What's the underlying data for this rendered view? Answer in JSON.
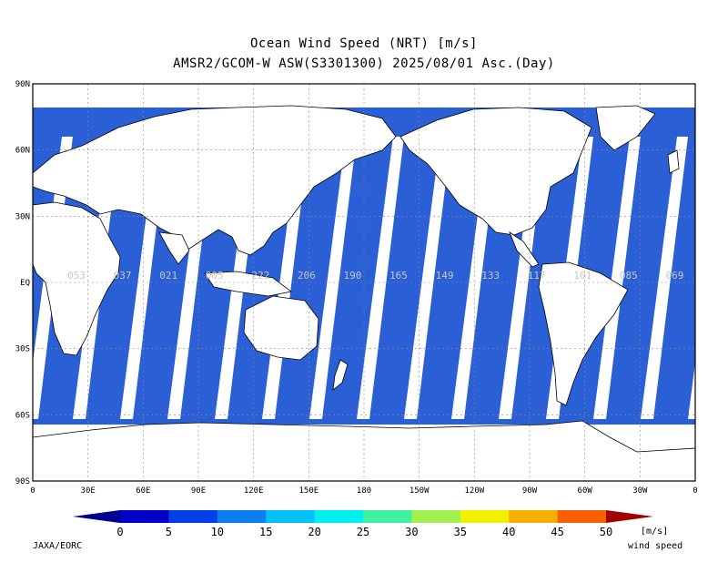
{
  "title": {
    "line1": "Ocean Wind Speed (NRT) [m/s]",
    "line2": "AMSR2/GCOM-W ASW(S3301300) 2025/08/01 Asc.(Day)"
  },
  "map": {
    "lat_ticks": [
      "90N",
      "60N",
      "30N",
      "EQ",
      "30S",
      "60S",
      "90S"
    ],
    "lon_ticks": [
      "0",
      "30E",
      "60E",
      "90E",
      "120E",
      "150E",
      "180",
      "150W",
      "120W",
      "90W",
      "60W",
      "30W",
      "0"
    ],
    "orbit_labels": [
      "053",
      "037",
      "021",
      "005",
      "222",
      "206",
      "190",
      "165",
      "149",
      "133",
      "117",
      "101",
      "085",
      "069"
    ],
    "ocean_color": "#2a5fd6",
    "swath_gap_color": "#ffffff",
    "land_color": "#ffffff"
  },
  "colorbar": {
    "ticks": [
      "0",
      "5",
      "10",
      "15",
      "20",
      "25",
      "30",
      "35",
      "40",
      "45",
      "50"
    ],
    "colors": [
      "#0000c8",
      "#0040e8",
      "#0a80f0",
      "#00c0f8",
      "#00f0f0",
      "#40f0a0",
      "#a0f050",
      "#f0f000",
      "#f8b000",
      "#f86000",
      "#e80000"
    ],
    "under_color": "#000090",
    "over_color": "#a00000",
    "unit": "[m/s]",
    "unit_label": "wind speed"
  },
  "credit": "JAXA/EORC"
}
